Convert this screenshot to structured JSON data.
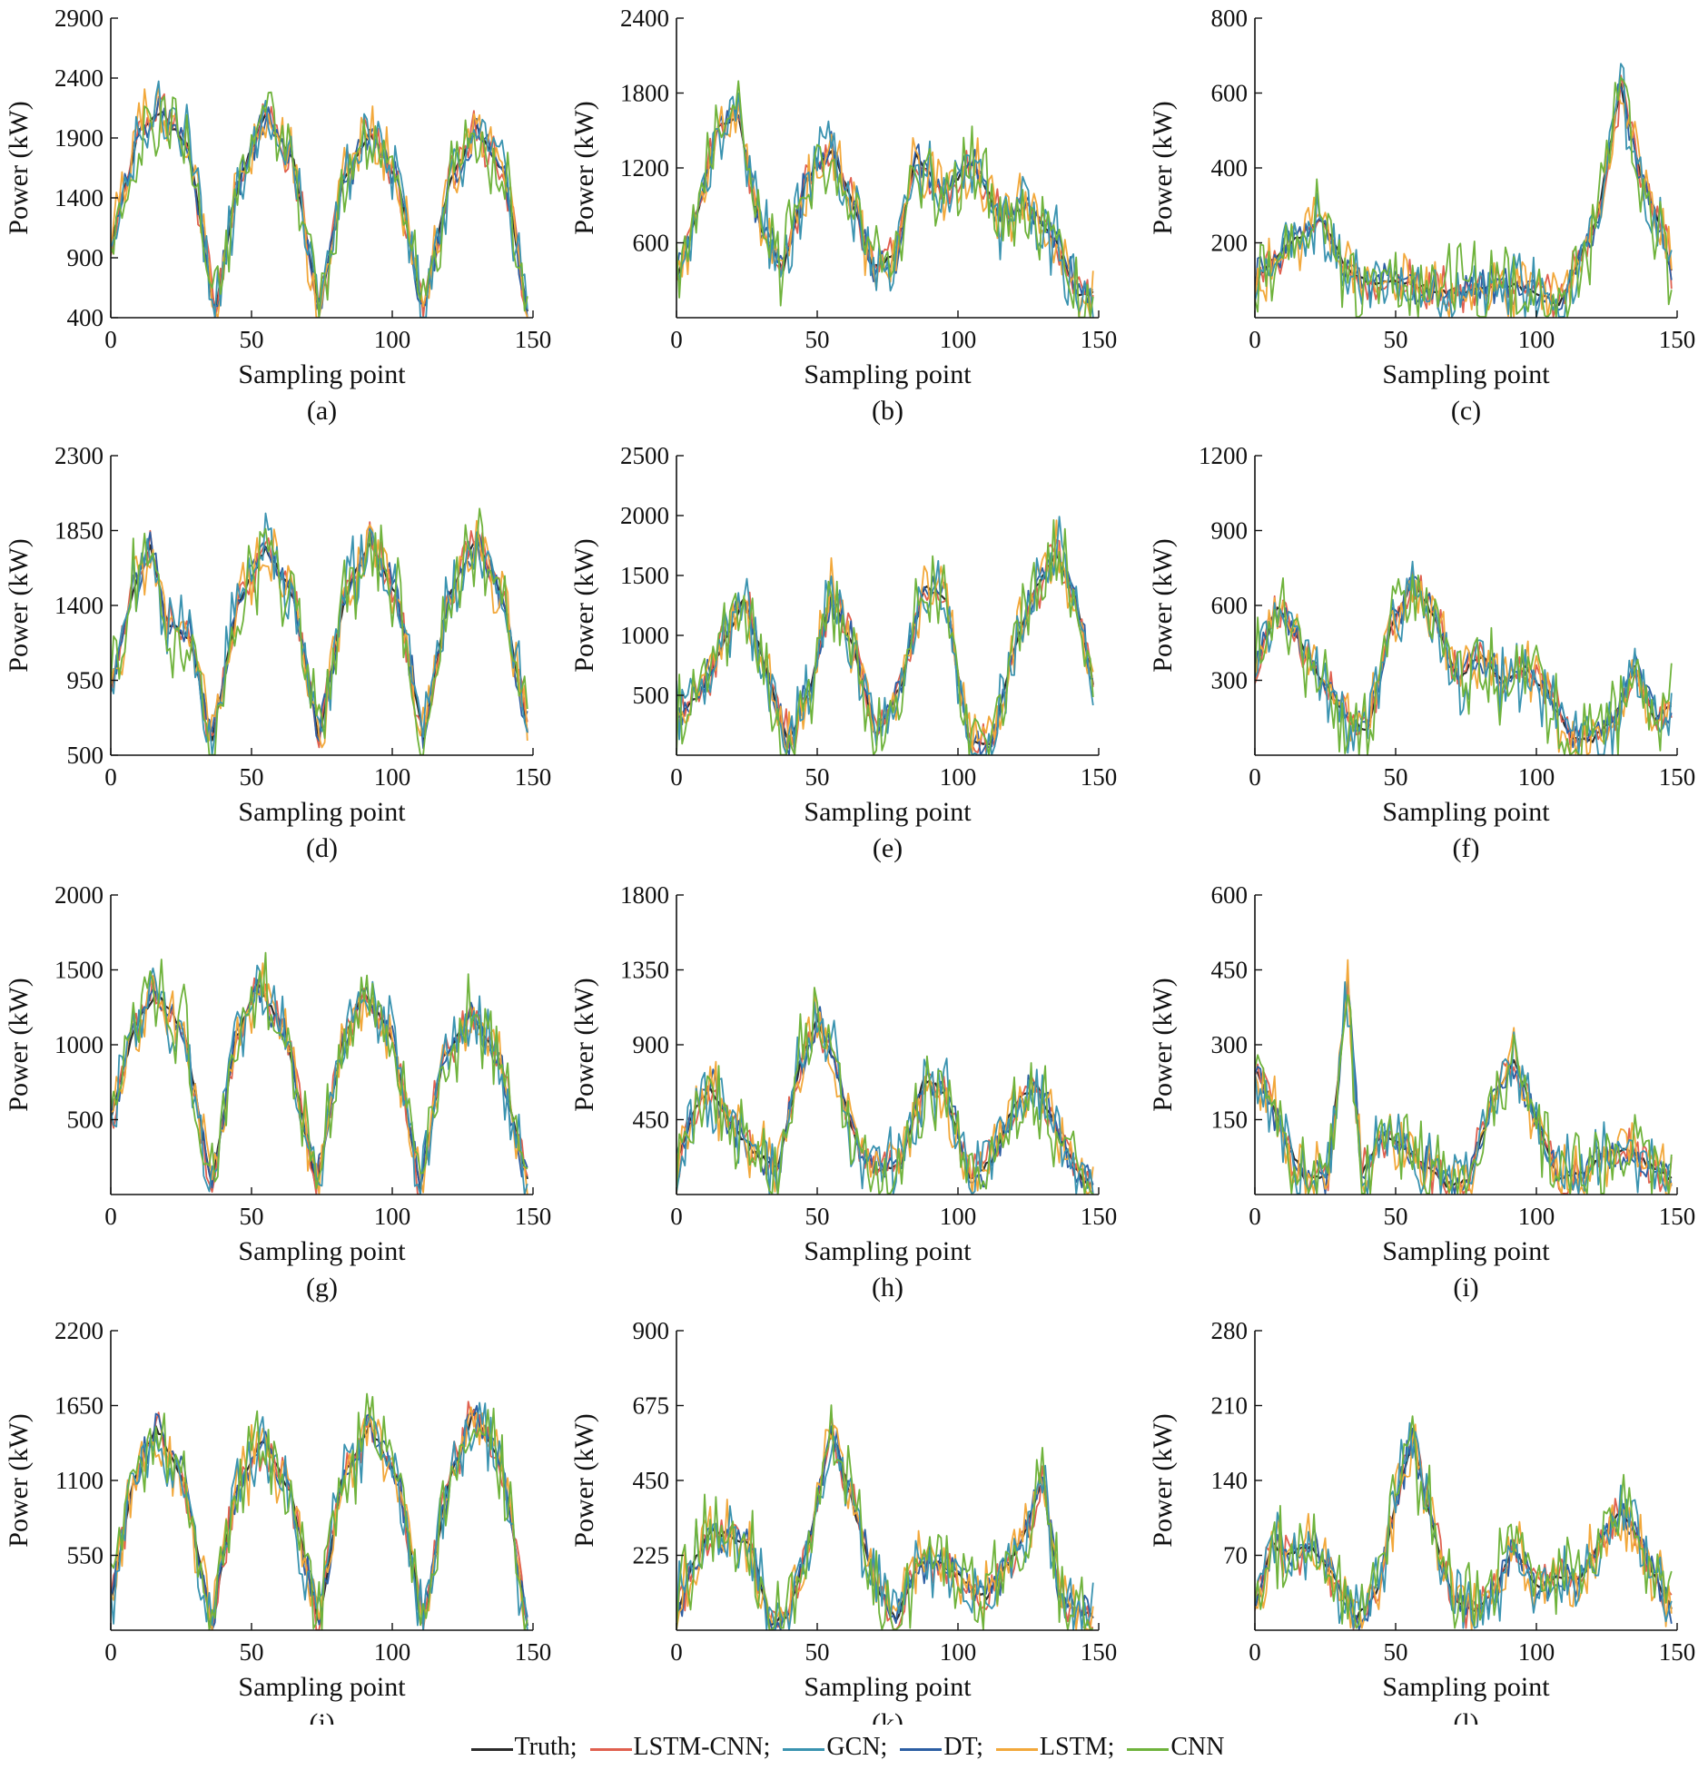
{
  "figure": {
    "panels_layout": "4 rows x 3 columns",
    "shared_legend_position": "bottom-center"
  },
  "legend": {
    "items": [
      {
        "label": "Truth",
        "sep": ";",
        "color": "#2b2b2b"
      },
      {
        "label": "LSTM-CNN",
        "sep": ";",
        "color": "#e0604f"
      },
      {
        "label": "GCN",
        "sep": ";",
        "color": "#3a93b0"
      },
      {
        "label": "DT",
        "sep": ";",
        "color": "#2c5ea3"
      },
      {
        "label": "LSTM",
        "sep": ";",
        "color": "#f2a83b"
      },
      {
        "label": "CNN",
        "sep": "",
        "color": "#6fb33c"
      }
    ]
  },
  "chart_data": [
    {
      "type": "line",
      "panel": "(a)",
      "xlabel": "Sampling point",
      "ylabel": "Power (kW)",
      "xlim": [
        0,
        150
      ],
      "xticks": [
        0,
        50,
        100,
        150
      ],
      "ylim": [
        400,
        2900
      ],
      "yticks": [
        400,
        900,
        1400,
        1900,
        2400,
        2900
      ],
      "truth": {
        "x": [
          0,
          10,
          18,
          28,
          37,
          45,
          55,
          65,
          74,
          82,
          92,
          102,
          111,
          120,
          130,
          140,
          148
        ],
        "y": [
          1000,
          1950,
          2120,
          1800,
          450,
          1500,
          2100,
          1700,
          450,
          1500,
          1950,
          1550,
          450,
          1500,
          1980,
          1600,
          450
        ]
      }
    },
    {
      "type": "line",
      "panel": "(b)",
      "xlabel": "Sampling point",
      "ylabel": "Power (kW)",
      "xlim": [
        0,
        150
      ],
      "xticks": [
        0,
        50,
        100,
        150
      ],
      "ylim": [
        0,
        2400
      ],
      "yticks": [
        600,
        1200,
        1800,
        2400
      ],
      "truth": {
        "x": [
          0,
          8,
          15,
          22,
          30,
          38,
          46,
          55,
          62,
          70,
          78,
          85,
          95,
          105,
          115,
          125,
          135,
          142,
          148
        ],
        "y": [
          300,
          900,
          1550,
          1600,
          700,
          400,
          1100,
          1350,
          950,
          400,
          500,
          1300,
          1000,
          1250,
          800,
          900,
          600,
          200,
          200
        ]
      }
    },
    {
      "type": "line",
      "panel": "(c)",
      "xlabel": "Sampling point",
      "ylabel": "Power (kW)",
      "xlim": [
        0,
        150
      ],
      "xticks": [
        0,
        50,
        100,
        150
      ],
      "ylim": [
        0,
        800
      ],
      "yticks": [
        200,
        400,
        600,
        800
      ],
      "truth": {
        "x": [
          0,
          8,
          16,
          24,
          32,
          40,
          50,
          60,
          70,
          80,
          90,
          100,
          108,
          115,
          122,
          130,
          137,
          144,
          148
        ],
        "y": [
          100,
          170,
          220,
          260,
          140,
          90,
          100,
          80,
          70,
          80,
          90,
          70,
          40,
          150,
          280,
          620,
          380,
          250,
          120
        ]
      }
    },
    {
      "type": "line",
      "panel": "(d)",
      "xlabel": "Sampling point",
      "ylabel": "Power (kW)",
      "xlim": [
        0,
        150
      ],
      "xticks": [
        0,
        50,
        100,
        150
      ],
      "ylim": [
        500,
        2300
      ],
      "yticks": [
        500,
        950,
        1400,
        1850,
        2300
      ],
      "truth": {
        "x": [
          0,
          8,
          14,
          20,
          28,
          36,
          45,
          55,
          65,
          74,
          83,
          92,
          102,
          111,
          120,
          130,
          140,
          148
        ],
        "y": [
          900,
          1500,
          1750,
          1300,
          1200,
          600,
          1400,
          1750,
          1450,
          600,
          1450,
          1780,
          1450,
          600,
          1450,
          1800,
          1400,
          650
        ]
      }
    },
    {
      "type": "line",
      "panel": "(e)",
      "xlabel": "Sampling point",
      "ylabel": "Power (kW)",
      "xlim": [
        0,
        150
      ],
      "xticks": [
        0,
        50,
        100,
        150
      ],
      "ylim": [
        0,
        2500
      ],
      "yticks": [
        500,
        1000,
        1500,
        2000,
        2500
      ],
      "truth": {
        "x": [
          0,
          8,
          16,
          24,
          32,
          40,
          48,
          55,
          63,
          71,
          80,
          88,
          96,
          104,
          112,
          120,
          128,
          135,
          142,
          148
        ],
        "y": [
          300,
          500,
          900,
          1300,
          700,
          100,
          600,
          1350,
          900,
          150,
          600,
          1400,
          1300,
          100,
          100,
          900,
          1400,
          1700,
          1300,
          600
        ]
      }
    },
    {
      "type": "line",
      "panel": "(f)",
      "xlabel": "Sampling point",
      "ylabel": "Power (kW)",
      "xlim": [
        0,
        150
      ],
      "xticks": [
        0,
        50,
        100,
        150
      ],
      "ylim": [
        0,
        1200
      ],
      "yticks": [
        300,
        600,
        900,
        1200
      ],
      "truth": {
        "x": [
          0,
          8,
          16,
          24,
          32,
          40,
          48,
          56,
          64,
          72,
          80,
          88,
          96,
          104,
          112,
          120,
          128,
          135,
          142,
          148
        ],
        "y": [
          350,
          600,
          450,
          300,
          150,
          100,
          500,
          700,
          550,
          300,
          400,
          300,
          350,
          250,
          80,
          60,
          150,
          350,
          150,
          200
        ]
      }
    },
    {
      "type": "line",
      "panel": "(g)",
      "xlabel": "Sampling point",
      "ylabel": "Power (kW)",
      "xlim": [
        0,
        150
      ],
      "xticks": [
        0,
        50,
        100,
        150
      ],
      "ylim": [
        0,
        2000
      ],
      "yticks": [
        500,
        1000,
        1500,
        2000
      ],
      "truth": {
        "x": [
          0,
          8,
          16,
          26,
          36,
          44,
          52,
          62,
          73,
          82,
          90,
          100,
          110,
          118,
          128,
          138,
          148
        ],
        "y": [
          500,
          1100,
          1350,
          1100,
          50,
          1000,
          1400,
          1100,
          50,
          1000,
          1350,
          1050,
          50,
          900,
          1200,
          900,
          100
        ]
      }
    },
    {
      "type": "line",
      "panel": "(h)",
      "xlabel": "Sampling point",
      "ylabel": "Power (kW)",
      "xlim": [
        0,
        150
      ],
      "xticks": [
        0,
        50,
        100,
        150
      ],
      "ylim": [
        0,
        1800
      ],
      "yticks": [
        450,
        900,
        1350,
        1800
      ],
      "truth": {
        "x": [
          0,
          6,
          12,
          20,
          28,
          36,
          44,
          50,
          56,
          64,
          72,
          80,
          88,
          96,
          104,
          112,
          120,
          128,
          136,
          144,
          148
        ],
        "y": [
          200,
          500,
          650,
          400,
          250,
          150,
          800,
          1050,
          800,
          300,
          150,
          200,
          700,
          600,
          100,
          200,
          550,
          650,
          350,
          100,
          50
        ]
      }
    },
    {
      "type": "line",
      "panel": "(i)",
      "xlabel": "Sampling point",
      "ylabel": "Power (kW)",
      "xlim": [
        0,
        150
      ],
      "xticks": [
        0,
        50,
        100,
        150
      ],
      "ylim": [
        0,
        600
      ],
      "yticks": [
        150,
        300,
        450,
        600
      ],
      "truth": {
        "x": [
          0,
          5,
          10,
          18,
          26,
          33,
          38,
          45,
          52,
          60,
          68,
          76,
          84,
          92,
          100,
          108,
          116,
          124,
          132,
          140,
          148
        ],
        "y": [
          250,
          200,
          120,
          30,
          40,
          420,
          40,
          120,
          100,
          60,
          20,
          30,
          180,
          270,
          150,
          30,
          40,
          80,
          90,
          60,
          30
        ]
      }
    },
    {
      "type": "line",
      "panel": "(j)",
      "xlabel": "Sampling point",
      "ylabel": "Power (kW)",
      "xlim": [
        0,
        150
      ],
      "xticks": [
        0,
        50,
        100,
        150
      ],
      "ylim": [
        0,
        2200
      ],
      "yticks": [
        550,
        1100,
        1650,
        2200
      ],
      "truth": {
        "x": [
          0,
          8,
          16,
          26,
          36,
          44,
          54,
          64,
          74,
          82,
          92,
          102,
          111,
          120,
          129,
          139,
          148
        ],
        "y": [
          200,
          1100,
          1500,
          1100,
          50,
          1000,
          1400,
          1000,
          50,
          1100,
          1500,
          1100,
          50,
          1100,
          1600,
          1200,
          50
        ]
      }
    },
    {
      "type": "line",
      "panel": "(k)",
      "xlabel": "Sampling point",
      "ylabel": "Power (kW)",
      "xlim": [
        0,
        150
      ],
      "xticks": [
        0,
        50,
        100,
        150
      ],
      "ylim": [
        0,
        900
      ],
      "yticks": [
        225,
        450,
        675,
        900
      ],
      "truth": {
        "x": [
          0,
          6,
          12,
          20,
          27,
          33,
          40,
          48,
          55,
          62,
          70,
          78,
          86,
          94,
          102,
          110,
          118,
          124,
          130,
          136,
          142,
          148
        ],
        "y": [
          50,
          200,
          300,
          280,
          250,
          20,
          50,
          300,
          600,
          400,
          150,
          30,
          200,
          200,
          150,
          100,
          200,
          300,
          450,
          100,
          60,
          40
        ]
      }
    },
    {
      "type": "line",
      "panel": "(l)",
      "xlabel": "Sampling point",
      "ylabel": "Power (kW)",
      "xlim": [
        0,
        150
      ],
      "xticks": [
        0,
        50,
        100,
        150
      ],
      "ylim": [
        0,
        280
      ],
      "yticks": [
        70,
        140,
        210,
        280
      ],
      "truth": {
        "x": [
          0,
          6,
          12,
          20,
          28,
          36,
          44,
          50,
          56,
          62,
          70,
          78,
          86,
          92,
          100,
          108,
          116,
          124,
          130,
          136,
          142,
          148
        ],
        "y": [
          20,
          80,
          70,
          80,
          50,
          10,
          40,
          120,
          180,
          110,
          30,
          20,
          40,
          80,
          40,
          50,
          50,
          90,
          110,
          90,
          50,
          20
        ]
      }
    }
  ]
}
